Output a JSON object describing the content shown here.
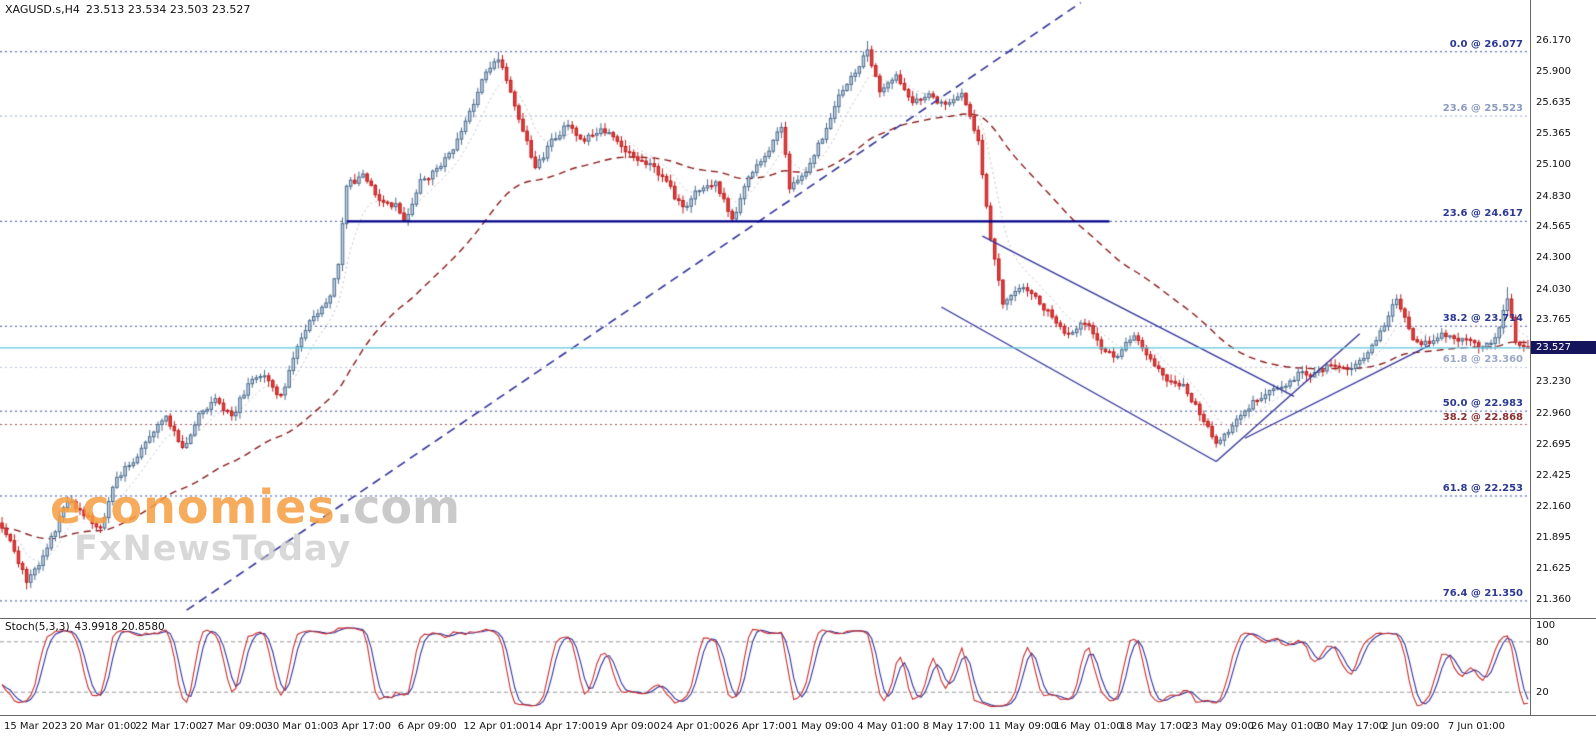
{
  "header": {
    "symbol": "XAGUSD.s,H4",
    "ohlc": "23.513 23.534 23.503 23.527"
  },
  "watermark": {
    "brand": "economies",
    "domain": ".com",
    "subtitle": "FxNewsToday"
  },
  "stoch_panel": {
    "name": "Stoch(5,3,3)",
    "values": "43.9918 20.8580"
  },
  "chart_data": {
    "type": "candlestick",
    "symbol": "XAGUSD.s",
    "timeframe": "H4",
    "ohlc_display": {
      "open": "23.513",
      "high": "23.534",
      "low": "23.503",
      "close": "23.527"
    },
    "current_price": 23.527,
    "current_price_label": "23.527",
    "price_view": [
      26.35,
      21.22
    ],
    "n_candles": 373,
    "price_ticks": [
      "26.170",
      "25.900",
      "25.635",
      "25.365",
      "25.100",
      "24.830",
      "24.565",
      "24.300",
      "24.030",
      "23.765",
      "23.230",
      "22.960",
      "22.695",
      "22.425",
      "22.160",
      "21.895",
      "21.625",
      "21.360"
    ],
    "time_labels": [
      "15 Mar 2023",
      "20 Mar 01:00",
      "22 Mar 17:00",
      "27 Mar 09:00",
      "30 Mar 01:00",
      "3 Apr 17:00",
      "6 Apr 09:00",
      "12 Apr 01:00",
      "14 Apr 17:00",
      "19 Apr 09:00",
      "24 Apr 01:00",
      "26 Apr 17:00",
      "1 May 09:00",
      "4 May 01:00",
      "8 May 17:00",
      "11 May 09:00",
      "16 May 01:00",
      "18 May 17:00",
      "23 May 09:00",
      "26 May 01:00",
      "30 May 17:00",
      "2 Jun 09:00",
      "7 Jun 01:00"
    ],
    "candles_per_label": 16,
    "trend_path": [
      [
        0,
        22.0
      ],
      [
        3,
        21.78
      ],
      [
        6,
        21.52
      ],
      [
        10,
        21.72
      ],
      [
        14,
        22.05
      ],
      [
        16,
        22.22
      ],
      [
        20,
        22.08
      ],
      [
        24,
        21.98
      ],
      [
        28,
        22.42
      ],
      [
        32,
        22.55
      ],
      [
        36,
        22.78
      ],
      [
        40,
        22.95
      ],
      [
        44,
        22.65
      ],
      [
        48,
        22.95
      ],
      [
        52,
        23.1
      ],
      [
        56,
        22.92
      ],
      [
        60,
        23.22
      ],
      [
        64,
        23.3
      ],
      [
        68,
        23.1
      ],
      [
        72,
        23.55
      ],
      [
        76,
        23.8
      ],
      [
        80,
        23.95
      ],
      [
        82,
        24.25
      ],
      [
        84,
        24.92
      ],
      [
        88,
        25.02
      ],
      [
        92,
        24.82
      ],
      [
        96,
        24.75
      ],
      [
        98,
        24.62
      ],
      [
        102,
        24.95
      ],
      [
        106,
        25.05
      ],
      [
        110,
        25.25
      ],
      [
        114,
        25.55
      ],
      [
        118,
        25.92
      ],
      [
        121,
        26.02
      ],
      [
        124,
        25.72
      ],
      [
        127,
        25.42
      ],
      [
        130,
        25.06
      ],
      [
        134,
        25.3
      ],
      [
        138,
        25.45
      ],
      [
        142,
        25.32
      ],
      [
        146,
        25.42
      ],
      [
        150,
        25.3
      ],
      [
        154,
        25.15
      ],
      [
        158,
        25.1
      ],
      [
        162,
        24.95
      ],
      [
        166,
        24.72
      ],
      [
        170,
        24.9
      ],
      [
        174,
        24.95
      ],
      [
        178,
        24.62
      ],
      [
        182,
        25.0
      ],
      [
        186,
        25.18
      ],
      [
        190,
        25.42
      ],
      [
        192,
        24.92
      ],
      [
        196,
        25.05
      ],
      [
        200,
        25.35
      ],
      [
        204,
        25.7
      ],
      [
        208,
        25.9
      ],
      [
        211,
        26.08
      ],
      [
        214,
        25.72
      ],
      [
        218,
        25.85
      ],
      [
        222,
        25.65
      ],
      [
        226,
        25.72
      ],
      [
        230,
        25.6
      ],
      [
        234,
        25.7
      ],
      [
        238,
        25.32
      ],
      [
        241,
        24.48
      ],
      [
        244,
        23.92
      ],
      [
        248,
        24.05
      ],
      [
        252,
        23.96
      ],
      [
        256,
        23.8
      ],
      [
        260,
        23.62
      ],
      [
        264,
        23.76
      ],
      [
        268,
        23.52
      ],
      [
        272,
        23.46
      ],
      [
        276,
        23.65
      ],
      [
        280,
        23.42
      ],
      [
        284,
        23.26
      ],
      [
        288,
        23.2
      ],
      [
        292,
        22.96
      ],
      [
        296,
        22.7
      ],
      [
        300,
        22.86
      ],
      [
        304,
        23.02
      ],
      [
        308,
        23.15
      ],
      [
        312,
        23.2
      ],
      [
        316,
        23.3
      ],
      [
        320,
        23.3
      ],
      [
        324,
        23.4
      ],
      [
        328,
        23.34
      ],
      [
        332,
        23.45
      ],
      [
        336,
        23.65
      ],
      [
        340,
        23.96
      ],
      [
        344,
        23.6
      ],
      [
        348,
        23.56
      ],
      [
        352,
        23.65
      ],
      [
        356,
        23.6
      ],
      [
        360,
        23.55
      ],
      [
        364,
        23.6
      ],
      [
        367,
        23.95
      ],
      [
        369,
        23.6
      ],
      [
        372,
        23.53
      ]
    ],
    "key_extremes": [
      {
        "idx": 6,
        "low": 21.45
      },
      {
        "idx": 121,
        "high": 26.077
      },
      {
        "idx": 211,
        "high": 26.17
      },
      {
        "idx": 296,
        "low": 22.672
      },
      {
        "idx": 367,
        "high": 24.05
      }
    ],
    "fib_levels": [
      {
        "label": "0.0 @ 26.077",
        "price": 26.077,
        "color": "#2b3990",
        "line_color": "#4050a8"
      },
      {
        "label": "23.6 @ 25.523",
        "price": 25.523,
        "color": "#8c9bbf",
        "line_color": "#9aa8c8"
      },
      {
        "label": "23.6 @ 24.617",
        "price": 24.617,
        "color": "#2b3990",
        "line_color": "#4050a8"
      },
      {
        "label": "38.2 @ 23.714",
        "price": 23.714,
        "color": "#2b3990",
        "line_color": "#4050a8"
      },
      {
        "label": "61.8 @ 23.360",
        "price": 23.36,
        "color": "#9aa8c8",
        "line_color": "#b8c2d8"
      },
      {
        "label": "50.0 @ 22.983",
        "price": 22.983,
        "color": "#2b3990",
        "line_color": "#4050a8"
      },
      {
        "label": "38.2 @ 22.868",
        "price": 22.868,
        "color": "#8b2f2f",
        "line_color": "#a85858"
      },
      {
        "label": "61.8 @ 22.253",
        "price": 22.253,
        "color": "#2b3990",
        "line_color": "#4050a8"
      },
      {
        "label": "76.4 @ 21.350",
        "price": 21.35,
        "color": "#2b3990",
        "line_color": "#4050a8"
      }
    ],
    "support_line": {
      "price": 24.617,
      "from_idx": 84,
      "to_idx": 270,
      "color": "#00008b",
      "width": 2.4
    },
    "trend_lines": [
      {
        "from": [
          45,
          21.27
        ],
        "to": [
          263,
          26.5
        ],
        "style": "dashed",
        "width": 1.6
      },
      {
        "from": [
          239,
          24.49
        ],
        "to": [
          315,
          23.11
        ],
        "style": "solid",
        "width": 1.3
      },
      {
        "from": [
          229,
          23.88
        ],
        "to": [
          296,
          22.55
        ],
        "style": "solid",
        "width": 1.3
      },
      {
        "from": [
          296,
          22.55
        ],
        "to": [
          331,
          23.65
        ],
        "style": "solid",
        "width": 1.3
      },
      {
        "from": [
          303,
          22.75
        ],
        "to": [
          348,
          23.55
        ],
        "style": "solid",
        "width": 1.3
      }
    ],
    "moving_averages": [
      {
        "period": 55,
        "style": "dashed",
        "color": "#8b1e1e"
      },
      {
        "period": 9,
        "style": "dotted",
        "color": "#c8c8c8"
      }
    ],
    "stochastic": {
      "k": 5,
      "d": 3,
      "slowing": 3,
      "levels": [
        80,
        20
      ],
      "scale_ticks": [
        "100",
        "80",
        "20"
      ],
      "main_color": "#c83030",
      "signal_color": "#3434a0",
      "current_values": "43.9918 20.8580"
    },
    "colors": {
      "bull_fill": "#c3d3e3",
      "bull_border": "#4e6e8e",
      "bear_fill": "#e14040",
      "bear_border": "#c01f1f",
      "trend_color": "#34349a",
      "current_line": "#5fc8dc",
      "tag_bg": "#14145c"
    }
  }
}
